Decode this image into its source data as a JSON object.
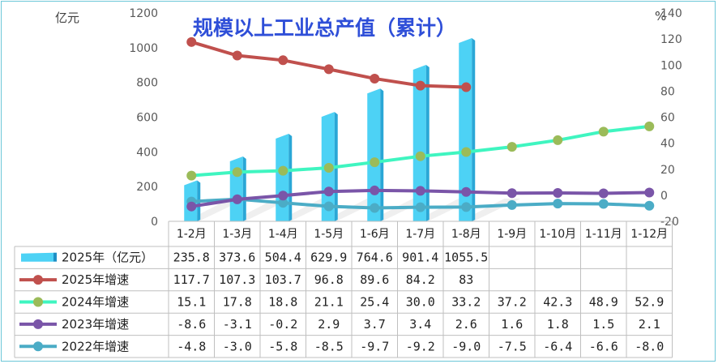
{
  "chart_data": {
    "type": "bar+line",
    "title": "规模以上工业总产值（累计）",
    "ylabel_left": "亿元",
    "ylabel_right": "%",
    "ylim_left": [
      0,
      1200
    ],
    "yticks_left": [
      "0",
      "200",
      "400",
      "600",
      "800",
      "1000",
      "1200"
    ],
    "ylim_right": [
      -20,
      140
    ],
    "yticks_right": [
      "-20",
      "0",
      "20",
      "40",
      "60",
      "80",
      "100",
      "120",
      "140"
    ],
    "categories": [
      "1-2月",
      "1-3月",
      "1-4月",
      "1-5月",
      "1-6月",
      "1-7月",
      "1-8月",
      "1-9月",
      "1-10月",
      "1-11月",
      "1-12月"
    ],
    "series": [
      {
        "name": "2025年（亿元）",
        "type": "bar",
        "axis": "left",
        "color": "#4dd2f5",
        "values": [
          235.8,
          373.6,
          504.4,
          629.9,
          764.6,
          901.4,
          1055.5,
          null,
          null,
          null,
          null
        ],
        "labels": [
          "235.8",
          "373.6",
          "504.4",
          "629.9",
          "764.6",
          "901.4",
          "1055.5",
          "",
          "",
          "",
          ""
        ]
      },
      {
        "name": "2025年增速",
        "type": "line",
        "axis": "right",
        "color": "#c0504d",
        "values": [
          117.7,
          107.3,
          103.7,
          96.8,
          89.6,
          84.2,
          83,
          null,
          null,
          null,
          null
        ],
        "labels": [
          "117.7",
          "107.3",
          "103.7",
          "96.8",
          "89.6",
          "84.2",
          "83",
          "",
          "",
          "",
          ""
        ]
      },
      {
        "name": "2024年增速",
        "type": "line",
        "axis": "right",
        "color": "#3ff5c0",
        "marker": "#9bbb59",
        "values": [
          15.1,
          17.8,
          18.8,
          21.1,
          25.4,
          30.0,
          33.2,
          37.2,
          42.3,
          48.9,
          52.9
        ],
        "labels": [
          "15.1",
          "17.8",
          "18.8",
          "21.1",
          "25.4",
          "30.0",
          "33.2",
          "37.2",
          "42.3",
          "48.9",
          "52.9"
        ]
      },
      {
        "name": "2023年增速",
        "type": "line",
        "axis": "right",
        "color": "#7a55a8",
        "values": [
          -8.6,
          -3.1,
          -0.2,
          2.9,
          3.7,
          3.4,
          2.6,
          1.6,
          1.8,
          1.5,
          2.1
        ],
        "labels": [
          "-8.6",
          "-3.1",
          "-0.2",
          "2.9",
          "3.7",
          "3.4",
          "2.6",
          "1.6",
          "1.8",
          "1.5",
          "2.1"
        ]
      },
      {
        "name": "2022年增速",
        "type": "line",
        "axis": "right",
        "color": "#4bacc6",
        "values": [
          -4.8,
          -3.0,
          -5.8,
          -8.5,
          -9.7,
          -9.2,
          -9.0,
          -7.5,
          -6.4,
          -6.6,
          -8.0
        ],
        "labels": [
          "-4.8",
          "-3.0",
          "-5.8",
          "-8.5",
          "-9.7",
          "-9.2",
          "-9.0",
          "-7.5",
          "-6.4",
          "-6.6",
          "-8.0"
        ]
      }
    ],
    "legend": "data-table"
  }
}
